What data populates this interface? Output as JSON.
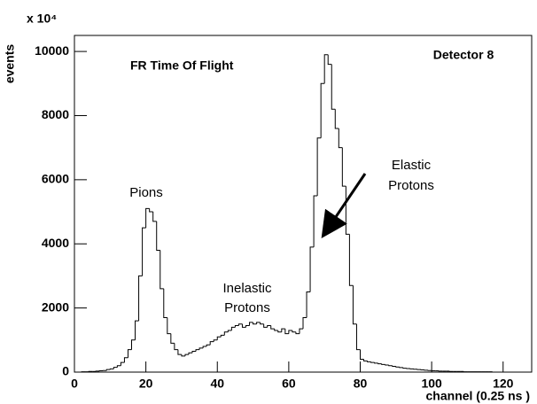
{
  "chart_data": {
    "type": "histogram",
    "title": "FR Time Of Flight",
    "detector_label": "Detector 8",
    "multiplier": "x 10⁴",
    "x_label": "channel (0.25 ns )",
    "y_label": "events",
    "annotations": [
      "Pions",
      "Inelastic",
      "Protons",
      "Elastic",
      "Protons"
    ],
    "bins": [
      0,
      1,
      2,
      3,
      4,
      5,
      6,
      7,
      8,
      9,
      10,
      11,
      12,
      13,
      14,
      15,
      16,
      17,
      18,
      19,
      20,
      21,
      22,
      23,
      24,
      25,
      26,
      27,
      28,
      29,
      30,
      31,
      32,
      33,
      34,
      35,
      36,
      37,
      38,
      39,
      40,
      41,
      42,
      43,
      44,
      45,
      46,
      47,
      48,
      49,
      50,
      51,
      52,
      53,
      54,
      55,
      56,
      57,
      58,
      59,
      60,
      61,
      62,
      63,
      64,
      65,
      66,
      67,
      68,
      69,
      70,
      71,
      72,
      73,
      74,
      75,
      76,
      77,
      78,
      79,
      80,
      81,
      82,
      83,
      84,
      85,
      86,
      87,
      88,
      89,
      90,
      91,
      92,
      93,
      94,
      95,
      96,
      97,
      98,
      99,
      100,
      101,
      102,
      103,
      104,
      105,
      106,
      107,
      108,
      109,
      110,
      111,
      112,
      113,
      114,
      115,
      116,
      117,
      118,
      119,
      120,
      121,
      122,
      123,
      124,
      125,
      126,
      127,
      128
    ],
    "values": [
      0,
      0,
      10,
      10,
      20,
      20,
      30,
      40,
      50,
      80,
      100,
      150,
      200,
      300,
      450,
      700,
      1000,
      1600,
      3000,
      4500,
      5100,
      5000,
      4700,
      3800,
      2600,
      1700,
      1200,
      900,
      700,
      550,
      500,
      550,
      600,
      650,
      700,
      750,
      800,
      850,
      950,
      1000,
      1100,
      1150,
      1250,
      1300,
      1400,
      1450,
      1500,
      1400,
      1450,
      1550,
      1500,
      1550,
      1500,
      1400,
      1450,
      1350,
      1300,
      1250,
      1350,
      1200,
      1300,
      1250,
      1200,
      1350,
      1700,
      2500,
      3900,
      5500,
      7300,
      9000,
      9900,
      9600,
      8200,
      7600,
      7000,
      5800,
      4300,
      2700,
      1500,
      700,
      400,
      350,
      320,
      300,
      280,
      260,
      240,
      220,
      200,
      180,
      160,
      140,
      120,
      110,
      100,
      90,
      80,
      70,
      60,
      50,
      40,
      40,
      30,
      30,
      30,
      20,
      20,
      20,
      20,
      10,
      10,
      10,
      10,
      10,
      10,
      10,
      10,
      0,
      0,
      0,
      0,
      0,
      0,
      0,
      0,
      0,
      0,
      0
    ],
    "color": "#000000",
    "xlim": [
      0,
      128
    ],
    "xticks": [
      0,
      20,
      40,
      60,
      80,
      100,
      120
    ],
    "ylim": [
      0,
      10500
    ],
    "yticks": [
      0,
      2000,
      4000,
      6000,
      8000,
      10000
    ]
  }
}
